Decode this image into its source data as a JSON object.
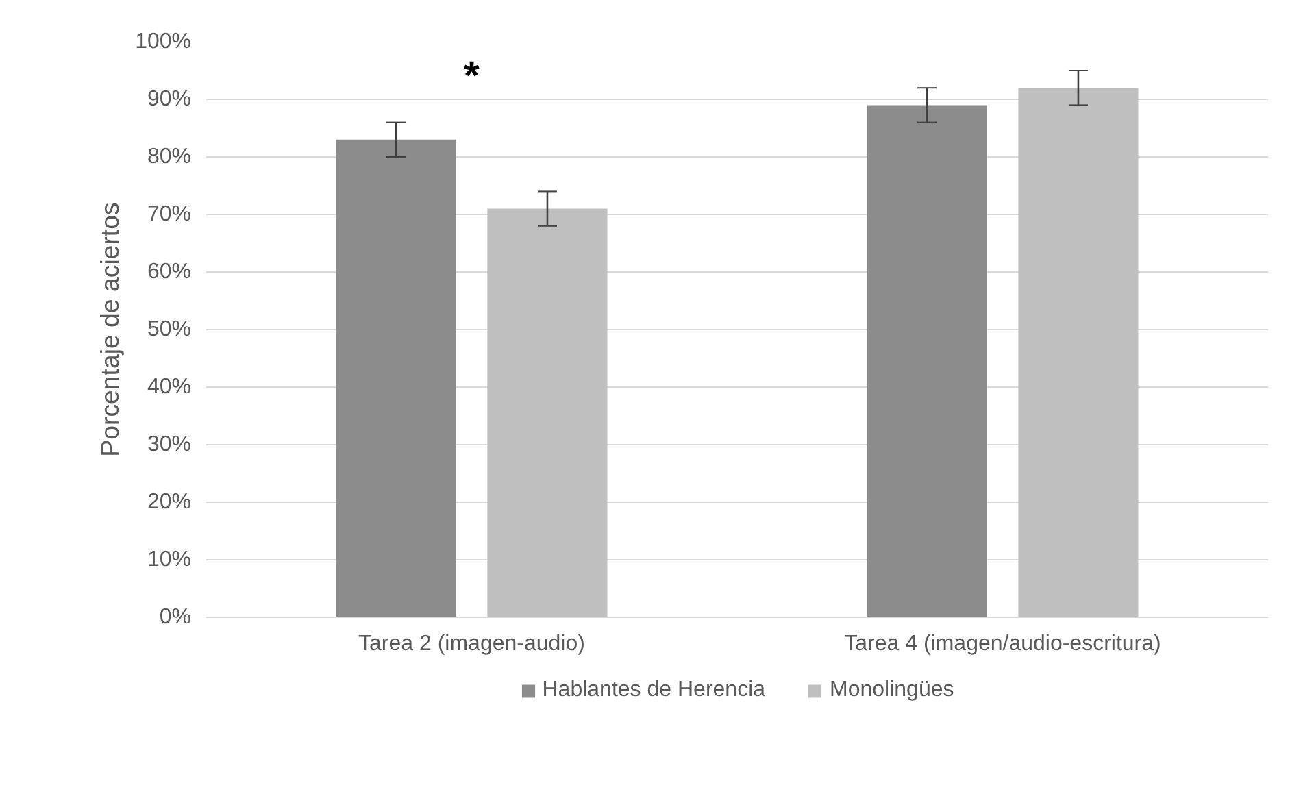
{
  "chart_data": {
    "type": "bar",
    "categories": [
      "Tarea 2 (imagen-audio)",
      "Tarea 4 (imagen/audio-escritura)"
    ],
    "ylabel": "Porcentaje de aciertos",
    "series": [
      {
        "name": "Hablantes de Herencia",
        "color": "#8c8c8c",
        "values": [
          83,
          89
        ],
        "errors": [
          3,
          3
        ]
      },
      {
        "name": "Monolingües",
        "color": "#bfbfbf",
        "values": [
          71,
          92
        ],
        "errors": [
          3,
          3
        ]
      }
    ],
    "ylim": [
      0,
      100
    ],
    "yticks": [
      {
        "value": 0,
        "label": "0%"
      },
      {
        "value": 10,
        "label": "10%"
      },
      {
        "value": 20,
        "label": "20%"
      },
      {
        "value": 30,
        "label": "30%"
      },
      {
        "value": 40,
        "label": "40%"
      },
      {
        "value": 50,
        "label": "50%"
      },
      {
        "value": 60,
        "label": "60%"
      },
      {
        "value": 70,
        "label": "70%"
      },
      {
        "value": 80,
        "label": "80%"
      },
      {
        "value": 90,
        "label": "90%"
      },
      {
        "value": 100,
        "label": "100%"
      }
    ],
    "grid": "y",
    "legend": "bottom",
    "annotations": [
      "*"
    ]
  }
}
